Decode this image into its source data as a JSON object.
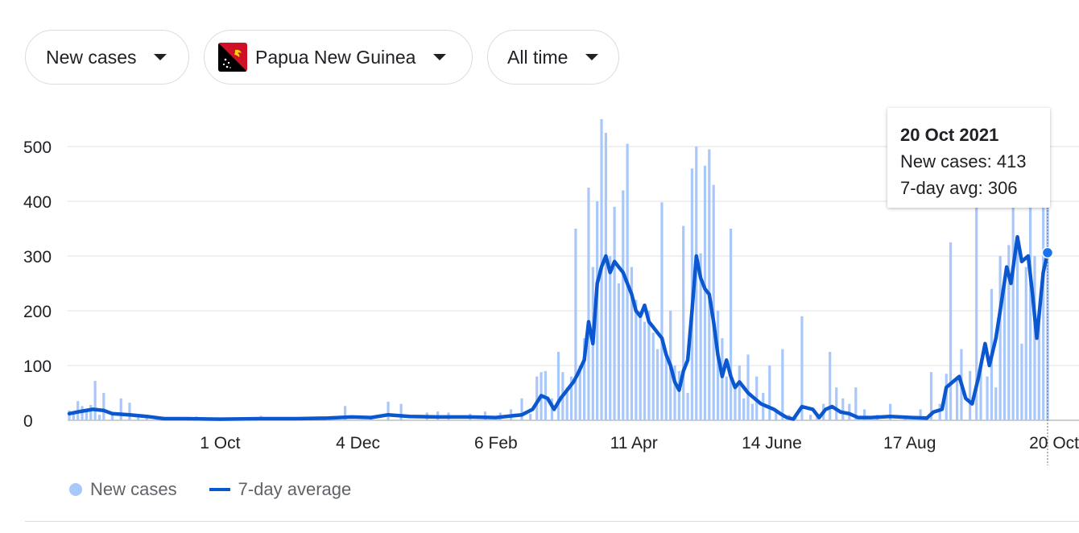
{
  "controls": {
    "metric": "New cases",
    "country": "Papua New Guinea",
    "range": "All time"
  },
  "legend": {
    "bars_label": "New cases",
    "line_label": "7-day average"
  },
  "tooltip": {
    "date": "20 Oct 2021",
    "cases_text": "New cases: 413",
    "avg_text": "7-day avg: 306"
  },
  "colors": {
    "bars": "#a8c7fa",
    "line": "#0b57d0",
    "highlight_dot": "#1a73e8",
    "grid": "#e0e0e0"
  },
  "chart_data": {
    "type": "bar",
    "title": "",
    "ylim": [
      0,
      550
    ],
    "yticks": [
      0,
      100,
      200,
      300,
      400,
      500
    ],
    "grid": true,
    "legend_position": "bottom-left",
    "x_range": [
      "2020-07-23",
      "2021-10-20"
    ],
    "xticks": [
      {
        "date": "2020-10-01",
        "label": "1 Oct"
      },
      {
        "date": "2020-12-04",
        "label": "4 Dec"
      },
      {
        "date": "2021-02-06",
        "label": "6 Feb"
      },
      {
        "date": "2021-04-11",
        "label": "11 Apr"
      },
      {
        "date": "2021-06-14",
        "label": "14 June"
      },
      {
        "date": "2021-08-17",
        "label": "17 Aug"
      },
      {
        "date": "2021-10-20",
        "label": "20 Oct"
      }
    ],
    "series": [
      {
        "name": "New cases",
        "kind": "bar",
        "points": [
          [
            "2020-07-23",
            18
          ],
          [
            "2020-07-25",
            12
          ],
          [
            "2020-07-27",
            35
          ],
          [
            "2020-07-29",
            26
          ],
          [
            "2020-07-31",
            15
          ],
          [
            "2020-08-02",
            28
          ],
          [
            "2020-08-04",
            72
          ],
          [
            "2020-08-06",
            10
          ],
          [
            "2020-08-08",
            50
          ],
          [
            "2020-08-12",
            10
          ],
          [
            "2020-08-16",
            40
          ],
          [
            "2020-08-20",
            32
          ],
          [
            "2020-08-24",
            10
          ],
          [
            "2020-08-28",
            6
          ],
          [
            "2020-09-03",
            4
          ],
          [
            "2020-09-12",
            4
          ],
          [
            "2020-09-20",
            7
          ],
          [
            "2020-09-30",
            3
          ],
          [
            "2020-10-08",
            2
          ],
          [
            "2020-10-20",
            8
          ],
          [
            "2020-11-05",
            3
          ],
          [
            "2020-11-20",
            4
          ],
          [
            "2020-11-28",
            26
          ],
          [
            "2020-12-10",
            8
          ],
          [
            "2020-12-18",
            34
          ],
          [
            "2020-12-24",
            30
          ],
          [
            "2021-01-05",
            14
          ],
          [
            "2021-01-10",
            16
          ],
          [
            "2021-01-15",
            14
          ],
          [
            "2021-01-25",
            12
          ],
          [
            "2021-02-01",
            16
          ],
          [
            "2021-02-08",
            14
          ],
          [
            "2021-02-13",
            20
          ],
          [
            "2021-02-18",
            40
          ],
          [
            "2021-02-22",
            12
          ],
          [
            "2021-02-25",
            80
          ],
          [
            "2021-02-27",
            88
          ],
          [
            "2021-03-01",
            90
          ],
          [
            "2021-03-04",
            40
          ],
          [
            "2021-03-07",
            125
          ],
          [
            "2021-03-09",
            88
          ],
          [
            "2021-03-11",
            60
          ],
          [
            "2021-03-13",
            80
          ],
          [
            "2021-03-15",
            350
          ],
          [
            "2021-03-17",
            100
          ],
          [
            "2021-03-19",
            150
          ],
          [
            "2021-03-21",
            425
          ],
          [
            "2021-03-23",
            280
          ],
          [
            "2021-03-25",
            400
          ],
          [
            "2021-03-27",
            550
          ],
          [
            "2021-03-29",
            525
          ],
          [
            "2021-03-31",
            300
          ],
          [
            "2021-04-02",
            390
          ],
          [
            "2021-04-04",
            250
          ],
          [
            "2021-04-06",
            420
          ],
          [
            "2021-04-08",
            505
          ],
          [
            "2021-04-10",
            280
          ],
          [
            "2021-04-12",
            220
          ],
          [
            "2021-04-14",
            200
          ],
          [
            "2021-04-16",
            180
          ],
          [
            "2021-04-18",
            200
          ],
          [
            "2021-04-20",
            160
          ],
          [
            "2021-04-22",
            130
          ],
          [
            "2021-04-24",
            398
          ],
          [
            "2021-04-26",
            120
          ],
          [
            "2021-04-28",
            200
          ],
          [
            "2021-04-30",
            100
          ],
          [
            "2021-05-02",
            90
          ],
          [
            "2021-05-04",
            355
          ],
          [
            "2021-05-06",
            50
          ],
          [
            "2021-05-08",
            460
          ],
          [
            "2021-05-10",
            500
          ],
          [
            "2021-05-12",
            305
          ],
          [
            "2021-05-14",
            465
          ],
          [
            "2021-05-16",
            495
          ],
          [
            "2021-05-18",
            430
          ],
          [
            "2021-05-20",
            200
          ],
          [
            "2021-05-22",
            150
          ],
          [
            "2021-05-24",
            80
          ],
          [
            "2021-05-26",
            350
          ],
          [
            "2021-05-28",
            60
          ],
          [
            "2021-05-30",
            100
          ],
          [
            "2021-06-01",
            40
          ],
          [
            "2021-06-03",
            120
          ],
          [
            "2021-06-05",
            30
          ],
          [
            "2021-06-07",
            80
          ],
          [
            "2021-06-10",
            50
          ],
          [
            "2021-06-13",
            100
          ],
          [
            "2021-06-16",
            20
          ],
          [
            "2021-06-19",
            130
          ],
          [
            "2021-06-22",
            10
          ],
          [
            "2021-06-25",
            6
          ],
          [
            "2021-06-28",
            190
          ],
          [
            "2021-07-02",
            10
          ],
          [
            "2021-07-05",
            8
          ],
          [
            "2021-07-08",
            30
          ],
          [
            "2021-07-11",
            125
          ],
          [
            "2021-07-14",
            60
          ],
          [
            "2021-07-17",
            40
          ],
          [
            "2021-07-20",
            30
          ],
          [
            "2021-07-23",
            60
          ],
          [
            "2021-07-27",
            20
          ],
          [
            "2021-08-02",
            10
          ],
          [
            "2021-08-08",
            30
          ],
          [
            "2021-08-15",
            5
          ],
          [
            "2021-08-22",
            20
          ],
          [
            "2021-08-27",
            88
          ],
          [
            "2021-08-31",
            30
          ],
          [
            "2021-09-03",
            85
          ],
          [
            "2021-09-05",
            325
          ],
          [
            "2021-09-08",
            80
          ],
          [
            "2021-09-10",
            130
          ],
          [
            "2021-09-14",
            90
          ],
          [
            "2021-09-17",
            390
          ],
          [
            "2021-09-19",
            100
          ],
          [
            "2021-09-22",
            80
          ],
          [
            "2021-09-24",
            240
          ],
          [
            "2021-09-26",
            60
          ],
          [
            "2021-09-28",
            300
          ],
          [
            "2021-09-30",
            250
          ],
          [
            "2021-10-02",
            320
          ],
          [
            "2021-10-04",
            395
          ],
          [
            "2021-10-06",
            330
          ],
          [
            "2021-10-08",
            140
          ],
          [
            "2021-10-10",
            280
          ],
          [
            "2021-10-12",
            395
          ],
          [
            "2021-10-14",
            300
          ],
          [
            "2021-10-16",
            200
          ],
          [
            "2021-10-18",
            390
          ],
          [
            "2021-10-20",
            413
          ]
        ]
      },
      {
        "name": "7-day average",
        "kind": "line",
        "points": [
          [
            "2020-07-23",
            12
          ],
          [
            "2020-07-28",
            16
          ],
          [
            "2020-08-03",
            20
          ],
          [
            "2020-08-08",
            18
          ],
          [
            "2020-08-12",
            12
          ],
          [
            "2020-08-20",
            10
          ],
          [
            "2020-08-28",
            7
          ],
          [
            "2020-09-05",
            3
          ],
          [
            "2020-09-15",
            3
          ],
          [
            "2020-10-01",
            2
          ],
          [
            "2020-10-20",
            3
          ],
          [
            "2020-11-05",
            3
          ],
          [
            "2020-11-20",
            4
          ],
          [
            "2020-12-01",
            6
          ],
          [
            "2020-12-10",
            5
          ],
          [
            "2020-12-18",
            10
          ],
          [
            "2020-12-28",
            7
          ],
          [
            "2021-01-10",
            6
          ],
          [
            "2021-01-25",
            6
          ],
          [
            "2021-02-06",
            5
          ],
          [
            "2021-02-13",
            8
          ],
          [
            "2021-02-18",
            10
          ],
          [
            "2021-02-23",
            20
          ],
          [
            "2021-02-27",
            45
          ],
          [
            "2021-03-02",
            40
          ],
          [
            "2021-03-05",
            20
          ],
          [
            "2021-03-08",
            40
          ],
          [
            "2021-03-11",
            55
          ],
          [
            "2021-03-14",
            70
          ],
          [
            "2021-03-16",
            85
          ],
          [
            "2021-03-19",
            110
          ],
          [
            "2021-03-21",
            180
          ],
          [
            "2021-03-23",
            140
          ],
          [
            "2021-03-25",
            250
          ],
          [
            "2021-03-27",
            280
          ],
          [
            "2021-03-29",
            300
          ],
          [
            "2021-03-31",
            270
          ],
          [
            "2021-04-02",
            290
          ],
          [
            "2021-04-04",
            280
          ],
          [
            "2021-04-06",
            270
          ],
          [
            "2021-04-08",
            250
          ],
          [
            "2021-04-10",
            230
          ],
          [
            "2021-04-12",
            200
          ],
          [
            "2021-04-14",
            190
          ],
          [
            "2021-04-16",
            210
          ],
          [
            "2021-04-18",
            180
          ],
          [
            "2021-04-20",
            170
          ],
          [
            "2021-04-22",
            160
          ],
          [
            "2021-04-24",
            150
          ],
          [
            "2021-04-26",
            120
          ],
          [
            "2021-04-28",
            100
          ],
          [
            "2021-04-30",
            70
          ],
          [
            "2021-05-02",
            55
          ],
          [
            "2021-05-04",
            90
          ],
          [
            "2021-05-06",
            110
          ],
          [
            "2021-05-08",
            200
          ],
          [
            "2021-05-10",
            300
          ],
          [
            "2021-05-12",
            260
          ],
          [
            "2021-05-14",
            240
          ],
          [
            "2021-05-16",
            230
          ],
          [
            "2021-05-18",
            180
          ],
          [
            "2021-05-20",
            120
          ],
          [
            "2021-05-22",
            80
          ],
          [
            "2021-05-24",
            110
          ],
          [
            "2021-05-26",
            80
          ],
          [
            "2021-05-28",
            60
          ],
          [
            "2021-05-30",
            70
          ],
          [
            "2021-06-01",
            60
          ],
          [
            "2021-06-03",
            50
          ],
          [
            "2021-06-06",
            40
          ],
          [
            "2021-06-09",
            30
          ],
          [
            "2021-06-12",
            25
          ],
          [
            "2021-06-15",
            20
          ],
          [
            "2021-06-18",
            12
          ],
          [
            "2021-06-21",
            5
          ],
          [
            "2021-06-24",
            2
          ],
          [
            "2021-06-28",
            25
          ],
          [
            "2021-07-03",
            20
          ],
          [
            "2021-07-06",
            5
          ],
          [
            "2021-07-09",
            20
          ],
          [
            "2021-07-12",
            25
          ],
          [
            "2021-07-16",
            15
          ],
          [
            "2021-07-20",
            12
          ],
          [
            "2021-07-24",
            5
          ],
          [
            "2021-07-30",
            5
          ],
          [
            "2021-08-08",
            7
          ],
          [
            "2021-08-18",
            5
          ],
          [
            "2021-08-25",
            4
          ],
          [
            "2021-08-28",
            15
          ],
          [
            "2021-09-01",
            20
          ],
          [
            "2021-09-03",
            60
          ],
          [
            "2021-09-06",
            70
          ],
          [
            "2021-09-09",
            80
          ],
          [
            "2021-09-12",
            40
          ],
          [
            "2021-09-15",
            30
          ],
          [
            "2021-09-18",
            80
          ],
          [
            "2021-09-21",
            140
          ],
          [
            "2021-09-23",
            100
          ],
          [
            "2021-09-26",
            150
          ],
          [
            "2021-09-28",
            200
          ],
          [
            "2021-10-01",
            280
          ],
          [
            "2021-10-03",
            250
          ],
          [
            "2021-10-06",
            335
          ],
          [
            "2021-10-08",
            290
          ],
          [
            "2021-10-11",
            300
          ],
          [
            "2021-10-13",
            230
          ],
          [
            "2021-10-15",
            150
          ],
          [
            "2021-10-18",
            270
          ],
          [
            "2021-10-20",
            306
          ]
        ]
      }
    ],
    "highlight": {
      "date": "2021-10-20",
      "new_cases": 413,
      "avg": 306
    }
  }
}
